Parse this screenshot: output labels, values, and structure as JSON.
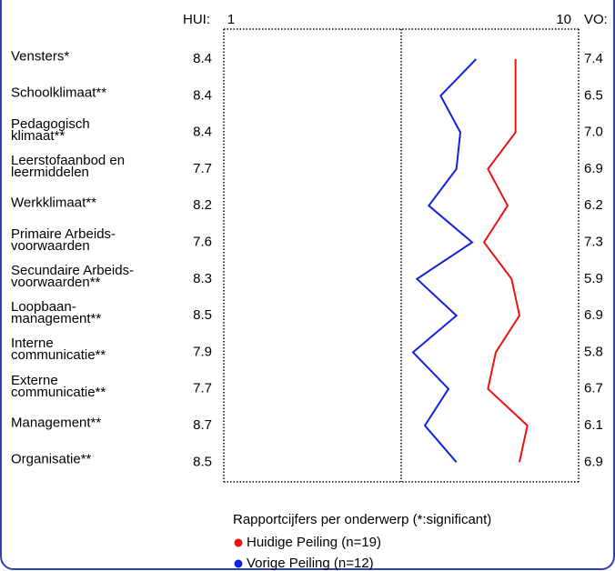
{
  "chart_data": {
    "type": "profile-line",
    "left_header": "HUI:",
    "right_header": "VO:",
    "legend_title": "Rapportcijfers per onderwerp (*:significant)",
    "categories": [
      "Vensters*",
      "Schoolklimaat**",
      "Pedagogisch\nklimaat**",
      "Leerstofaanbod en\nleermiddelen",
      "Werkklimaat**",
      "Primaire Arbeids-\nvoorwaarden",
      "Secundaire Arbeids-\nvoorwaarden**",
      "Loopbaan-\nmanagement**",
      "Interne\ncommunicatie**",
      "Externe\ncommunicatie**",
      "Management**",
      "Organisatie**"
    ],
    "series": [
      {
        "name": "Huidige Peiling (n=19)",
        "color": "#ee1111",
        "column": "left",
        "values": [
          8.4,
          8.4,
          8.4,
          7.7,
          8.2,
          7.6,
          8.3,
          8.5,
          7.9,
          7.7,
          8.7,
          8.5
        ],
        "value_labels": [
          "8.4",
          "8.4",
          "8.4",
          "7.7",
          "8.2",
          "7.6",
          "8.3",
          "8.5",
          "7.9",
          "7.7",
          "8.7",
          "8.5"
        ]
      },
      {
        "name": "Vorige Peiling (n=12)",
        "color": "#1122dd",
        "column": "right",
        "values": [
          7.4,
          6.5,
          7.0,
          6.9,
          6.2,
          7.3,
          5.9,
          6.9,
          5.8,
          6.7,
          6.1,
          6.9
        ],
        "value_labels": [
          "7.4",
          "6.5",
          "7.0",
          "6.9",
          "6.2",
          "7.3",
          "5.9",
          "6.9",
          "5.8",
          "6.7",
          "6.1",
          "6.9"
        ]
      }
    ],
    "xlim": [
      1,
      10
    ],
    "xticks": [
      1,
      10
    ]
  }
}
